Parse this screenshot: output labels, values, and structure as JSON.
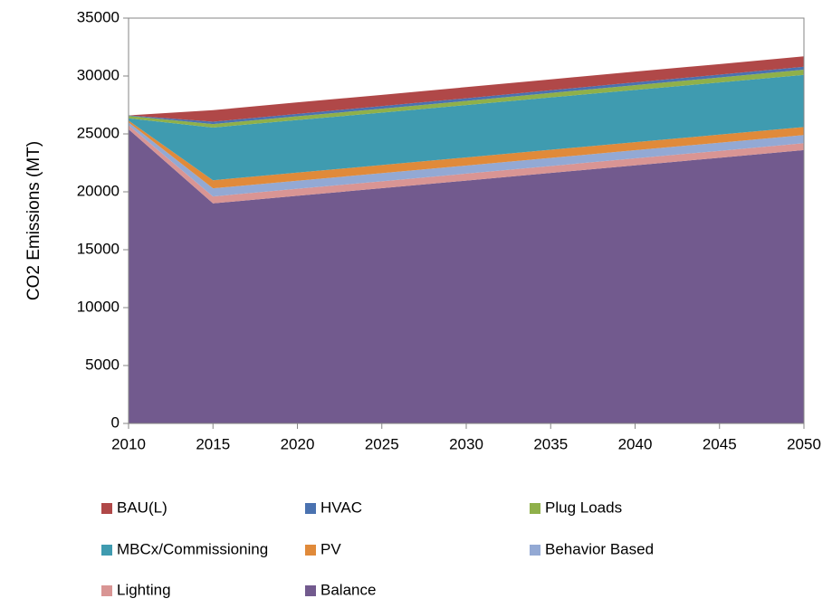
{
  "chart_data": {
    "type": "stacked_area",
    "y_label": "CO2 Emissions (MT)",
    "x": [
      2010,
      2015,
      2020,
      2025,
      2030,
      2035,
      2040,
      2045,
      2050
    ],
    "xlim": [
      2010,
      2050
    ],
    "xticks": [
      2010,
      2015,
      2020,
      2025,
      2030,
      2035,
      2040,
      2045,
      2050
    ],
    "ylim": [
      0,
      35000
    ],
    "yticks": [
      0,
      5000,
      10000,
      15000,
      20000,
      25000,
      30000,
      35000
    ],
    "series": [
      {
        "name": "Balance",
        "color": "#725a8e",
        "values": [
          25400,
          19000,
          19660,
          20310,
          20970,
          21630,
          22290,
          22940,
          23600
        ]
      },
      {
        "name": "Lighting",
        "color": "#d99594",
        "values": [
          350,
          600,
          600,
          600,
          600,
          600,
          600,
          600,
          600
        ]
      },
      {
        "name": "Behavior Based",
        "color": "#93a9d4",
        "values": [
          250,
          700,
          700,
          700,
          700,
          700,
          700,
          700,
          700
        ]
      },
      {
        "name": "PV",
        "color": "#e08a3a",
        "values": [
          150,
          700,
          700,
          700,
          700,
          700,
          700,
          700,
          700
        ]
      },
      {
        "name": "MBCx/Commissioning",
        "color": "#3f9bb0",
        "values": [
          200,
          4550,
          4540,
          4530,
          4520,
          4520,
          4510,
          4500,
          4500
        ]
      },
      {
        "name": "Plug Loads",
        "color": "#8fb04a",
        "values": [
          200,
          300,
          320,
          340,
          360,
          390,
          410,
          430,
          450
        ]
      },
      {
        "name": "HVAC",
        "color": "#4a72b0",
        "values": [
          50,
          200,
          210,
          220,
          230,
          230,
          240,
          250,
          250
        ]
      },
      {
        "name": "BAU(L)",
        "color": "#b04848",
        "values": [
          0,
          1000,
          990,
          970,
          960,
          940,
          930,
          910,
          900
        ]
      }
    ],
    "legend_order": [
      7,
      6,
      5,
      4,
      3,
      2,
      1,
      0
    ]
  }
}
